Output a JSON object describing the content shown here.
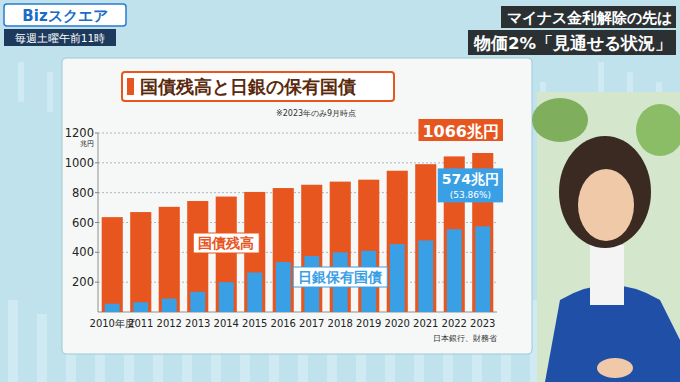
{
  "screen": {
    "program": "Bizスクエア",
    "schedule": "毎週土曜午前11時",
    "headline": [
      "マイナス金利解除の先は",
      "物価2%「見通せる状況」"
    ]
  },
  "chart_data": {
    "type": "bar",
    "title": "国債残高と日銀の保有国債",
    "subtitle": "※2023年のみ9月時点",
    "ylabel": "兆円",
    "source": "日本銀行、財務省",
    "categories": [
      "2010年度",
      "2011",
      "2012",
      "2013",
      "2014",
      "2015",
      "2016",
      "2017",
      "2018",
      "2019",
      "2020",
      "2021",
      "2022",
      "2023"
    ],
    "series": [
      {
        "name": "国債残高",
        "color": "#e8561f",
        "values": [
          636,
          670,
          705,
          744,
          774,
          805,
          831,
          853,
          874,
          887,
          947,
          991,
          1043,
          1066
        ],
        "value_labels": [
          null,
          null,
          null,
          null,
          null,
          null,
          null,
          null,
          null,
          null,
          null,
          null,
          null,
          "1066兆円"
        ]
      },
      {
        "name": "日銀保有国債",
        "color": "#3aa0e6",
        "values": [
          55,
          65,
          90,
          135,
          200,
          265,
          335,
          375,
          400,
          410,
          455,
          480,
          555,
          574
        ],
        "value_labels": [
          null,
          null,
          null,
          null,
          null,
          null,
          null,
          null,
          null,
          null,
          null,
          null,
          null,
          "574兆円"
        ]
      }
    ],
    "annotation": "(53.86%)",
    "ylim": [
      0,
      1200
    ],
    "yticks": [
      200,
      400,
      600,
      800,
      1000,
      1200
    ],
    "grid": true,
    "stacked": false
  }
}
